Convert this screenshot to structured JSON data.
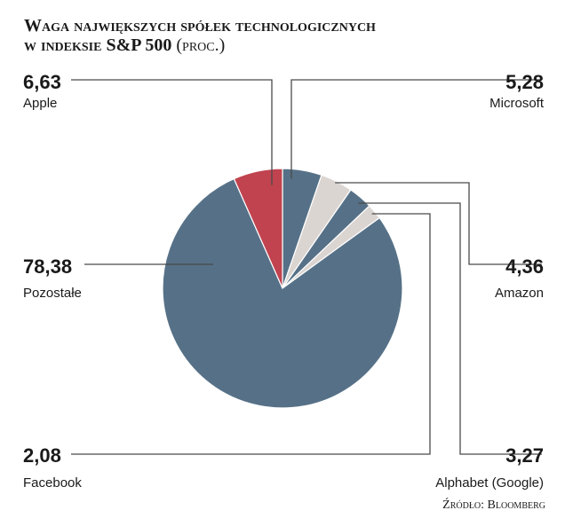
{
  "title": {
    "line1": "Waga największych spółek technologicznych",
    "line2": "w indeksie S&P 500",
    "unit": "(proc.)"
  },
  "source": "Źródło: Bloomberg",
  "colors": {
    "main": "#567187",
    "accent": "#c0434f",
    "light": "#dbd5d2",
    "line": "#4a4a4a"
  },
  "chart_data": {
    "type": "pie",
    "slices": [
      {
        "label": "Microsoft",
        "value": 5.28,
        "display": "5,28",
        "color": "#567187"
      },
      {
        "label": "Amazon",
        "value": 4.36,
        "display": "4,36",
        "color": "#dbd5d2"
      },
      {
        "label": "Alphabet (Google)",
        "value": 3.27,
        "display": "3,27",
        "color": "#567187"
      },
      {
        "label": "Facebook",
        "value": 2.08,
        "display": "2,08",
        "color": "#dbd5d2"
      },
      {
        "label": "Pozostałe",
        "value": 78.38,
        "display": "78,38",
        "color": "#567187"
      },
      {
        "label": "Apple",
        "value": 6.63,
        "display": "6,63",
        "color": "#c0434f"
      }
    ]
  }
}
